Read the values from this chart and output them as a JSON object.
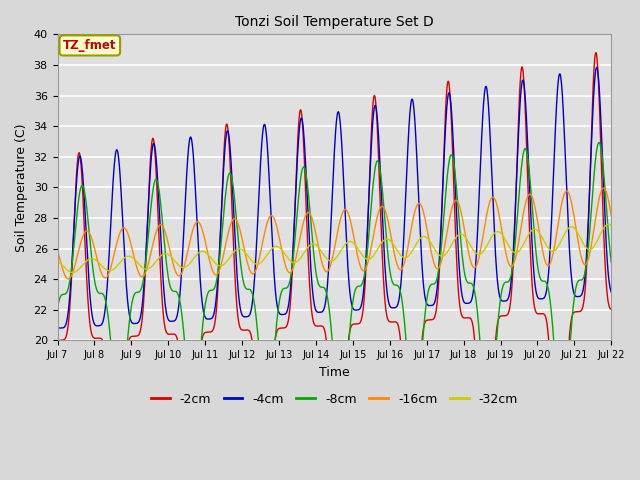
{
  "title": "Tonzi Soil Temperature Set D",
  "xlabel": "Time",
  "ylabel": "Soil Temperature (C)",
  "ylim": [
    20,
    40
  ],
  "series_colors": {
    "-2cm": "#dd0000",
    "-4cm": "#0000cc",
    "-8cm": "#00aa00",
    "-16cm": "#ff8800",
    "-32cm": "#cccc00"
  },
  "legend_label": "TZ_fmet",
  "background_color": "#e0e0e0",
  "tick_labels": [
    "Jul 7",
    "Jul 8",
    "Jul 9",
    "Jul 10",
    "Jul 11",
    "Jul 12",
    "Jul 13",
    "Jul 14",
    "Jul 15",
    "Jul 16",
    "Jul 17",
    "Jul 18",
    "Jul 19",
    "Jul 20",
    "Jul 21",
    "Jul 22"
  ],
  "linewidth": 1.0
}
